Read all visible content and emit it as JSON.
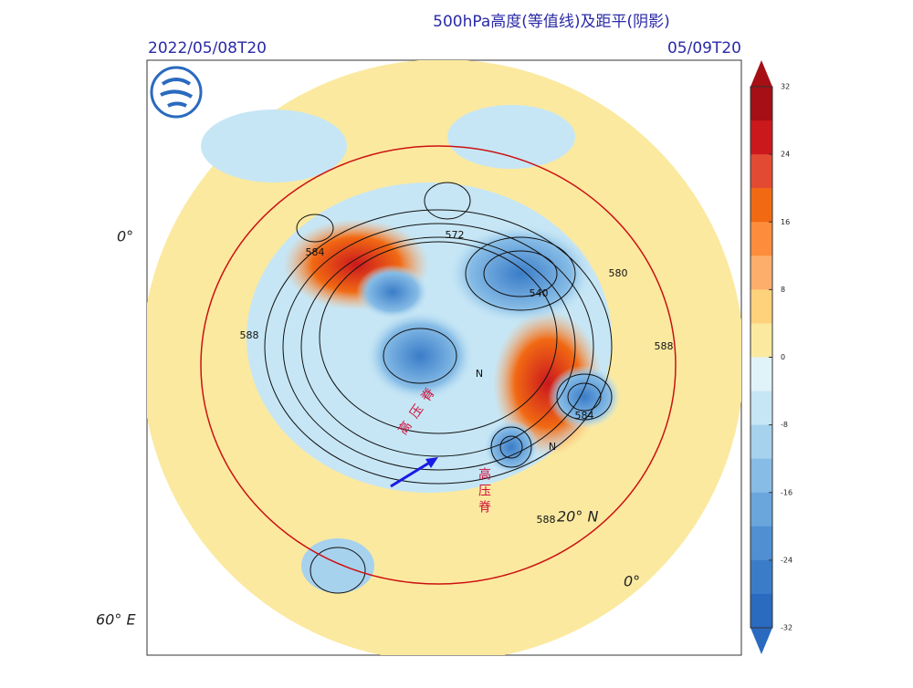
{
  "header": {
    "title": "500hPa高度(等值线)及距平(阴影)",
    "start_time": "2022/05/08T20",
    "valid_time": "05/09T20"
  },
  "map": {
    "graticule_labels": [
      "0°",
      "60° E",
      "20° N",
      "0°"
    ],
    "contour_labels": [
      "584",
      "588",
      "572",
      "540",
      "580",
      "588",
      "584",
      "588",
      "N",
      "N"
    ],
    "annotations": [
      "高压脊",
      "高压脊"
    ]
  },
  "colorbar": {
    "ticks": [
      32,
      24,
      16,
      8,
      0,
      -8,
      -16,
      -24,
      -32
    ],
    "colors": [
      "#a50f15",
      "#cb181d",
      "#e34a33",
      "#f16913",
      "#fd8d3c",
      "#fdae6b",
      "#fdd27b",
      "#fbe9a0",
      "#e0f3f8",
      "#c6e6f5",
      "#a6d2ee",
      "#86bce6",
      "#6aa5dc",
      "#4f8fd2",
      "#3a7cc8",
      "#2a6abf"
    ]
  }
}
